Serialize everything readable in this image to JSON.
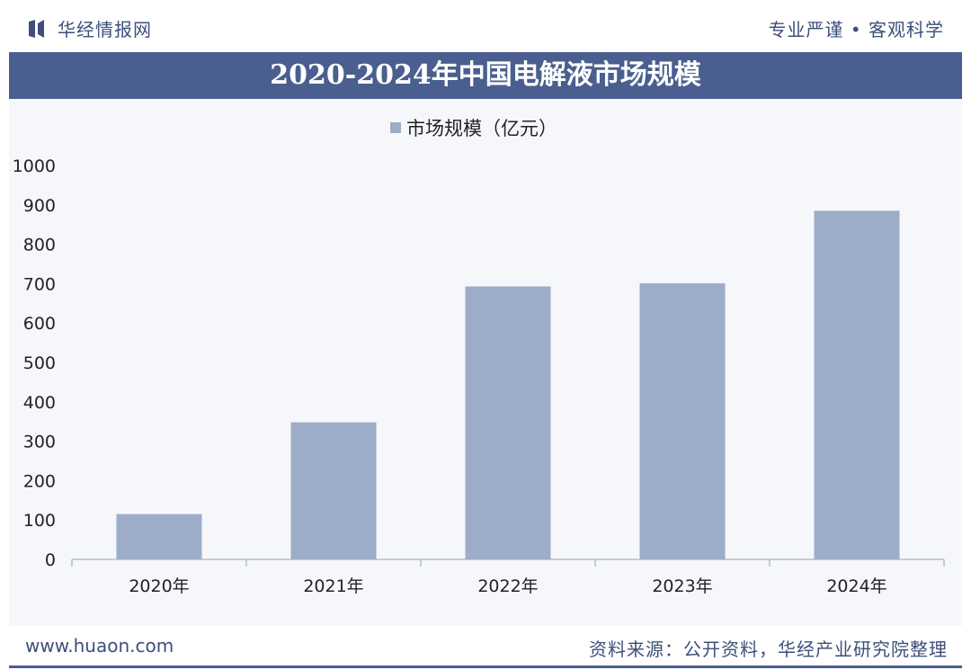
{
  "header": {
    "brand": "华经情报网",
    "slogan": "专业严谨 • 客观科学"
  },
  "footer": {
    "website": "www.huaon.com",
    "source": "资料来源：公开资料，华经产业研究院整理"
  },
  "colors": {
    "title_bar": "#4a5f8f",
    "bar": "#9dadc8",
    "text": "#3d4f7a"
  },
  "chart_data": {
    "type": "bar",
    "title": "2020-2024年中国电解液市场规模",
    "legend": "top-center",
    "grid": false,
    "categories": [
      "2020年",
      "2021年",
      "2022年",
      "2023年",
      "2024年"
    ],
    "series": [
      {
        "name": "市场规模（亿元）",
        "values": [
          115,
          348,
          693,
          701,
          885
        ]
      }
    ],
    "ylim": [
      0,
      1000
    ],
    "yticks": [
      0,
      100,
      200,
      300,
      400,
      500,
      600,
      700,
      800,
      900,
      1000
    ]
  }
}
